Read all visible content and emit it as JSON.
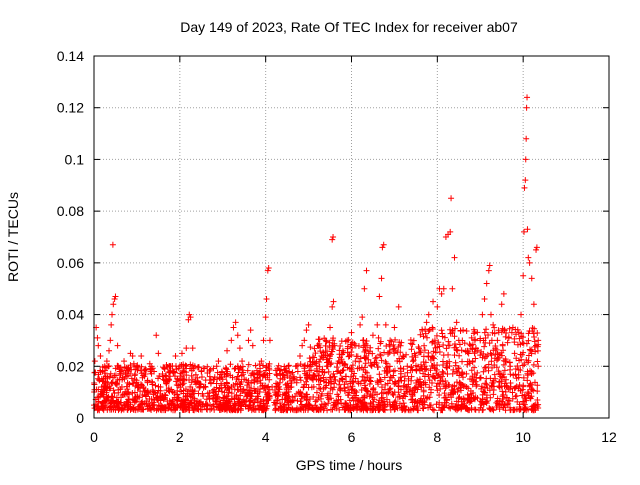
{
  "chart_data": {
    "type": "scatter",
    "title": "Day 149 of 2023, Rate Of TEC Index for receiver ab07",
    "xlabel": "GPS time / hours",
    "ylabel": "ROTI / TECUs",
    "xlim": [
      0,
      12
    ],
    "ylim": [
      0,
      0.14
    ],
    "xticks": [
      0,
      2,
      4,
      6,
      8,
      10,
      12
    ],
    "xtick_labels": [
      "0",
      "2",
      "4",
      "6",
      "8",
      "10",
      "12"
    ],
    "yticks": [
      0,
      0.02,
      0.04,
      0.06,
      0.08,
      0.1,
      0.12,
      0.14
    ],
    "ytick_labels": [
      "0",
      "0.02",
      "0.04",
      "0.06",
      "0.08",
      "0.1",
      "0.12",
      "0.14"
    ],
    "grid": true,
    "marker": "plus",
    "color": "#ff0000",
    "series": [
      {
        "name": "ROTI",
        "points": [
          [
            0.0,
            0.005
          ],
          [
            0.02,
            0.022
          ],
          [
            0.05,
            0.035
          ],
          [
            0.08,
            0.031
          ],
          [
            0.1,
            0.028
          ],
          [
            0.12,
            0.015
          ],
          [
            0.15,
            0.024
          ],
          [
            0.18,
            0.012
          ],
          [
            0.2,
            0.018
          ],
          [
            0.22,
            0.009
          ],
          [
            0.25,
            0.02
          ],
          [
            0.28,
            0.014
          ],
          [
            0.3,
            0.022
          ],
          [
            0.32,
            0.016
          ],
          [
            0.35,
            0.026
          ],
          [
            0.38,
            0.03
          ],
          [
            0.4,
            0.036
          ],
          [
            0.42,
            0.04
          ],
          [
            0.45,
            0.044
          ],
          [
            0.48,
            0.046
          ],
          [
            0.5,
            0.047
          ],
          [
            0.44,
            0.067
          ],
          [
            0.55,
            0.028
          ],
          [
            0.6,
            0.018
          ],
          [
            0.65,
            0.012
          ],
          [
            0.7,
            0.022
          ],
          [
            0.75,
            0.016
          ],
          [
            0.8,
            0.01
          ],
          [
            0.85,
            0.025
          ],
          [
            0.9,
            0.024
          ],
          [
            0.95,
            0.015
          ],
          [
            1.0,
            0.02
          ],
          [
            1.05,
            0.008
          ],
          [
            1.1,
            0.024
          ],
          [
            1.15,
            0.012
          ],
          [
            1.2,
            0.017
          ],
          [
            1.25,
            0.01
          ],
          [
            1.3,
            0.021
          ],
          [
            1.35,
            0.014
          ],
          [
            1.4,
            0.018
          ],
          [
            1.45,
            0.032
          ],
          [
            1.5,
            0.025
          ],
          [
            1.55,
            0.012
          ],
          [
            1.6,
            0.016
          ],
          [
            1.65,
            0.009
          ],
          [
            1.7,
            0.014
          ],
          [
            1.75,
            0.02
          ],
          [
            1.8,
            0.011
          ],
          [
            1.85,
            0.018
          ],
          [
            1.9,
            0.024
          ],
          [
            1.95,
            0.015
          ],
          [
            2.0,
            0.02
          ],
          [
            2.05,
            0.025
          ],
          [
            2.1,
            0.018
          ],
          [
            2.15,
            0.027
          ],
          [
            2.2,
            0.038
          ],
          [
            2.22,
            0.04
          ],
          [
            2.25,
            0.039
          ],
          [
            2.3,
            0.027
          ],
          [
            2.35,
            0.02
          ],
          [
            2.4,
            0.014
          ],
          [
            2.5,
            0.018
          ],
          [
            2.6,
            0.012
          ],
          [
            2.7,
            0.016
          ],
          [
            2.8,
            0.011
          ],
          [
            2.9,
            0.022
          ],
          [
            3.0,
            0.015
          ],
          [
            3.1,
            0.026
          ],
          [
            3.2,
            0.03
          ],
          [
            3.25,
            0.035
          ],
          [
            3.3,
            0.037
          ],
          [
            3.35,
            0.032
          ],
          [
            3.4,
            0.027
          ],
          [
            3.45,
            0.022
          ],
          [
            3.5,
            0.015
          ],
          [
            3.6,
            0.03
          ],
          [
            3.65,
            0.034
          ],
          [
            3.7,
            0.028
          ],
          [
            3.8,
            0.017
          ],
          [
            3.9,
            0.022
          ],
          [
            3.95,
            0.03
          ],
          [
            4.0,
            0.039
          ],
          [
            4.02,
            0.046
          ],
          [
            4.05,
            0.057
          ],
          [
            4.07,
            0.058
          ],
          [
            4.1,
            0.03
          ],
          [
            4.15,
            0.012
          ],
          [
            4.2,
            0.006
          ],
          [
            4.3,
            0.01
          ],
          [
            4.4,
            0.015
          ],
          [
            4.5,
            0.008
          ],
          [
            4.6,
            0.012
          ],
          [
            4.7,
            0.02
          ],
          [
            4.8,
            0.024
          ],
          [
            4.85,
            0.028
          ],
          [
            4.9,
            0.03
          ],
          [
            4.95,
            0.034
          ],
          [
            5.0,
            0.036
          ],
          [
            5.05,
            0.02
          ],
          [
            5.1,
            0.015
          ],
          [
            5.2,
            0.018
          ],
          [
            5.3,
            0.024
          ],
          [
            5.4,
            0.03
          ],
          [
            5.5,
            0.035
          ],
          [
            5.55,
            0.043
          ],
          [
            5.58,
            0.045
          ],
          [
            5.55,
            0.069
          ],
          [
            5.57,
            0.07
          ],
          [
            5.6,
            0.028
          ],
          [
            5.7,
            0.022
          ],
          [
            5.8,
            0.026
          ],
          [
            5.9,
            0.03
          ],
          [
            6.0,
            0.033
          ],
          [
            6.1,
            0.028
          ],
          [
            6.2,
            0.036
          ],
          [
            6.25,
            0.039
          ],
          [
            6.3,
            0.05
          ],
          [
            6.35,
            0.057
          ],
          [
            6.4,
            0.025
          ],
          [
            6.5,
            0.032
          ],
          [
            6.6,
            0.036
          ],
          [
            6.65,
            0.047
          ],
          [
            6.7,
            0.054
          ],
          [
            6.72,
            0.066
          ],
          [
            6.75,
            0.067
          ],
          [
            6.8,
            0.036
          ],
          [
            6.9,
            0.03
          ],
          [
            7.0,
            0.035
          ],
          [
            7.1,
            0.043
          ],
          [
            7.2,
            0.024
          ],
          [
            7.3,
            0.02
          ],
          [
            7.4,
            0.016
          ],
          [
            7.5,
            0.012
          ],
          [
            7.6,
            0.014
          ],
          [
            7.7,
            0.02
          ],
          [
            7.75,
            0.037
          ],
          [
            7.8,
            0.04
          ],
          [
            7.9,
            0.045
          ],
          [
            8.0,
            0.043
          ],
          [
            8.05,
            0.05
          ],
          [
            8.1,
            0.048
          ],
          [
            8.15,
            0.05
          ],
          [
            8.2,
            0.07
          ],
          [
            8.25,
            0.071
          ],
          [
            8.3,
            0.072
          ],
          [
            8.32,
            0.085
          ],
          [
            8.35,
            0.05
          ],
          [
            8.4,
            0.062
          ],
          [
            8.45,
            0.037
          ],
          [
            8.5,
            0.03
          ],
          [
            8.6,
            0.034
          ],
          [
            8.7,
            0.026
          ],
          [
            8.8,
            0.031
          ],
          [
            8.9,
            0.027
          ],
          [
            9.0,
            0.03
          ],
          [
            9.05,
            0.04
          ],
          [
            9.1,
            0.046
          ],
          [
            9.15,
            0.052
          ],
          [
            9.2,
            0.057
          ],
          [
            9.22,
            0.059
          ],
          [
            9.25,
            0.04
          ],
          [
            9.3,
            0.036
          ],
          [
            9.4,
            0.03
          ],
          [
            9.5,
            0.044
          ],
          [
            9.55,
            0.048
          ],
          [
            9.6,
            0.022
          ],
          [
            9.7,
            0.02
          ],
          [
            9.8,
            0.025
          ],
          [
            9.9,
            0.033
          ],
          [
            9.95,
            0.04
          ],
          [
            10.0,
            0.055
          ],
          [
            10.02,
            0.072
          ],
          [
            10.03,
            0.089
          ],
          [
            10.05,
            0.092
          ],
          [
            10.06,
            0.1
          ],
          [
            10.07,
            0.108
          ],
          [
            10.08,
            0.12
          ],
          [
            10.09,
            0.124
          ],
          [
            10.1,
            0.073
          ],
          [
            10.12,
            0.062
          ],
          [
            10.15,
            0.06
          ],
          [
            10.2,
            0.054
          ],
          [
            10.25,
            0.044
          ],
          [
            10.3,
            0.065
          ],
          [
            10.32,
            0.066
          ],
          [
            10.35,
            0.03
          ],
          [
            10.35,
            0.02
          ]
        ]
      }
    ]
  }
}
